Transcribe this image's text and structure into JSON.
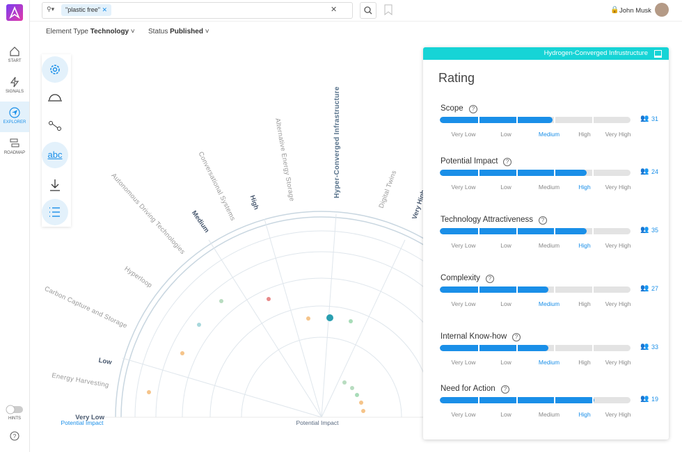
{
  "sidebar": {
    "items": [
      "START",
      "SIGNALS",
      "EXPLORER",
      "ROADMAP"
    ],
    "hints": "HINTS"
  },
  "search": {
    "chip": "\"plastic free\""
  },
  "user": {
    "name": "John Musk"
  },
  "filters": [
    {
      "label": "Element Type",
      "value": "Technology"
    },
    {
      "label": "Status",
      "value": "Published"
    }
  ],
  "tools": {
    "text_tool": "abc"
  },
  "radar": {
    "ring_labels": [
      "Very Low",
      "Low",
      "Medium",
      "High",
      "Very High"
    ],
    "technologies": [
      "Autonomous Driving Technologies",
      "Conversational Systems",
      "Alternative Energy Storage",
      "Hyper-Converged Infrastructure",
      "Digital Twins",
      "Hyperloop",
      "Carbon Capture and Storage",
      "Energy Harvesting"
    ],
    "axis_labels": [
      "Potential Impact",
      "Potential Impact"
    ]
  },
  "panel": {
    "header": "Hydrogen-Converged Infrustructure",
    "title": "Rating",
    "levels": [
      "Very Low",
      "Low",
      "Medium",
      "High",
      "Very High"
    ],
    "ratings": [
      {
        "name": "Scope",
        "fill": 59,
        "selected": 2,
        "count": 31
      },
      {
        "name": "Potential Impact",
        "fill": 77,
        "selected": 3,
        "count": 24
      },
      {
        "name": "Technology Attractiveness",
        "fill": 77,
        "selected": 3,
        "count": 35
      },
      {
        "name": "Complexity",
        "fill": 57,
        "selected": 2,
        "count": 27
      },
      {
        "name": "Internal Know-how",
        "fill": 57,
        "selected": 2,
        "count": 33
      },
      {
        "name": "Need for Action",
        "fill": 81,
        "selected": 3,
        "count": 19
      }
    ]
  }
}
